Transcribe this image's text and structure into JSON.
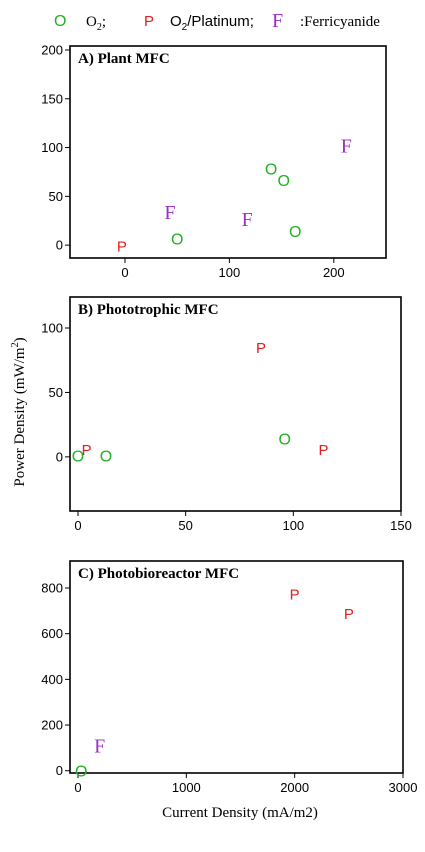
{
  "colors": {
    "O": "#22b022",
    "P": "#e02020",
    "F": "#9a30c8"
  },
  "legend": {
    "o_marker": "O",
    "o_label": "O",
    "o_sub": "2",
    "o_sep": ";",
    "p_marker": "P",
    "p_label": "O",
    "p_sub": "2",
    "p_rest": "/Platinum;",
    "f_marker": "F",
    "f_label": ":Ferricyanide"
  },
  "axes": {
    "ylabel": "Power Density (mW/m",
    "ylabel_sup": "2",
    "ylabel_close": ")",
    "xlabel": "Current Density (mA/m2)"
  },
  "chart_data": [
    {
      "type": "scatter",
      "title": "A) Plant MFC",
      "xlim": [
        -45,
        250
      ],
      "ylim": [
        -5,
        200
      ],
      "xticks": [
        0,
        100,
        200
      ],
      "yticks": [
        0,
        50,
        100,
        150,
        200
      ],
      "series": [
        {
          "name": "O2",
          "marker": "O",
          "points": [
            [
              50,
              5
            ],
            [
              140,
              77
            ],
            [
              152,
              65
            ],
            [
              163,
              13
            ]
          ]
        },
        {
          "name": "O2/Platinum",
          "marker": "P",
          "points": [
            [
              -3,
              -2
            ]
          ]
        },
        {
          "name": "Ferricyanide",
          "marker": "F",
          "points": [
            [
              43,
              33
            ],
            [
              117,
              26
            ],
            [
              212,
              101
            ]
          ]
        }
      ]
    },
    {
      "type": "scatter",
      "title": "B) Phototrophic  MFC",
      "xlim": [
        0,
        150
      ],
      "ylim": [
        -42,
        100
      ],
      "xticks": [
        0,
        50,
        100,
        150
      ],
      "yticks": [
        0,
        50,
        100
      ],
      "series": [
        {
          "name": "O2",
          "marker": "O",
          "points": [
            [
              0,
              0
            ],
            [
              13,
              0
            ],
            [
              96,
              13
            ]
          ]
        },
        {
          "name": "O2/Platinum",
          "marker": "P",
          "points": [
            [
              4,
              5
            ],
            [
              85,
              84
            ],
            [
              114,
              5
            ]
          ]
        },
        {
          "name": "Ferricyanide",
          "marker": "F",
          "points": []
        }
      ]
    },
    {
      "type": "scatter",
      "title": "C) Photobioreactor MFC",
      "xlim": [
        0,
        3000
      ],
      "ylim": [
        -10,
        870
      ],
      "xticks": [
        0,
        1000,
        2000,
        3000
      ],
      "yticks": [
        0,
        200,
        400,
        600,
        800
      ],
      "series": [
        {
          "name": "O2",
          "marker": "O",
          "points": [
            [
              30,
              -5
            ]
          ]
        },
        {
          "name": "O2/Platinum",
          "marker": "P",
          "points": [
            [
              2000,
              770
            ],
            [
              2500,
              685
            ]
          ]
        },
        {
          "name": "Ferricyanide",
          "marker": "F",
          "points": [
            [
              200,
              105
            ]
          ]
        }
      ]
    }
  ]
}
